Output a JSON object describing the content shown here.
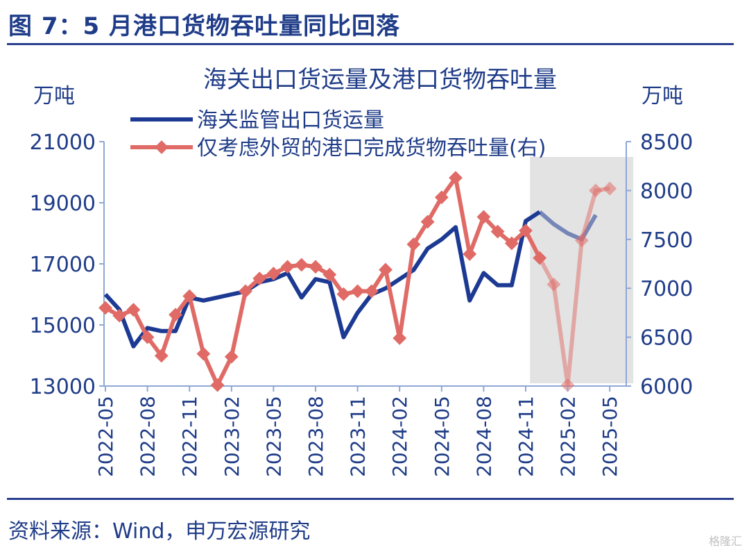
{
  "figure_title": "图 7：5 月港口货物吞吐量同比回落",
  "source_note": "资料来源：Wind，申万宏源研究",
  "watermark": "格隆汇",
  "colors": {
    "navy": "#1c3a93",
    "salmon": "#e06b66",
    "axis": "#8ea7d6",
    "highlight": "#e3e3e3",
    "text": "#1f3c88"
  },
  "chart_data": {
    "type": "line",
    "title": "海关出口货运量及港口货物吞吐量",
    "left_unit": "万吨",
    "right_unit": "万吨",
    "ylim_left": [
      13000,
      21000
    ],
    "ylim_right": [
      6000,
      8500
    ],
    "yticks_left": [
      "21000",
      "19000",
      "17000",
      "15000",
      "13000"
    ],
    "yticks_right": [
      "8500",
      "8000",
      "7500",
      "7000",
      "6500",
      "6000"
    ],
    "x_tick_labels": [
      "2022-05",
      "2022-08",
      "2022-11",
      "2023-02",
      "2023-05",
      "2023-08",
      "2023-11",
      "2024-02",
      "2024-05",
      "2024-08",
      "2024-11",
      "2025-02",
      "2025-05"
    ],
    "x_months": [
      "2022-05",
      "2022-06",
      "2022-07",
      "2022-08",
      "2022-09",
      "2022-10",
      "2022-11",
      "2022-12",
      "2023-01",
      "2023-02",
      "2023-03",
      "2023-04",
      "2023-05",
      "2023-06",
      "2023-07",
      "2023-08",
      "2023-09",
      "2023-10",
      "2023-11",
      "2023-12",
      "2024-01",
      "2024-02",
      "2024-03",
      "2024-04",
      "2024-05",
      "2024-06",
      "2024-07",
      "2024-08",
      "2024-09",
      "2024-10",
      "2024-11",
      "2024-12",
      "2025-01",
      "2025-02",
      "2025-03",
      "2025-04",
      "2025-05"
    ],
    "highlight_range": [
      "2024-12",
      "2025-05"
    ],
    "grid": false,
    "legend_position": "top-left",
    "series": [
      {
        "name": "海关监管出口货运量",
        "axis": "left",
        "color": "#1c3a93",
        "values": [
          16000,
          15500,
          14300,
          14900,
          14800,
          14800,
          15900,
          15800,
          15900,
          16000,
          16100,
          16400,
          16500,
          16700,
          15900,
          16500,
          16400,
          14600,
          15400,
          16000,
          16200,
          16500,
          16800,
          17500,
          17800,
          18200,
          15800,
          16700,
          16300,
          16300,
          18400,
          18700,
          18300,
          18000,
          17800,
          18600,
          null
        ]
      },
      {
        "name": "仅考虑外贸的港口完成货物吞吐量(右)",
        "axis": "right",
        "color": "#e06b66",
        "values": [
          6800,
          6720,
          6780,
          6500,
          6310,
          6730,
          6920,
          6330,
          6010,
          6300,
          6970,
          7100,
          7150,
          7220,
          7240,
          7220,
          7140,
          6940,
          6970,
          6970,
          7190,
          6490,
          7450,
          7680,
          7930,
          8130,
          7350,
          7730,
          7580,
          7460,
          7590,
          7310,
          7040,
          6010,
          7490,
          8000,
          8020
        ]
      }
    ]
  }
}
